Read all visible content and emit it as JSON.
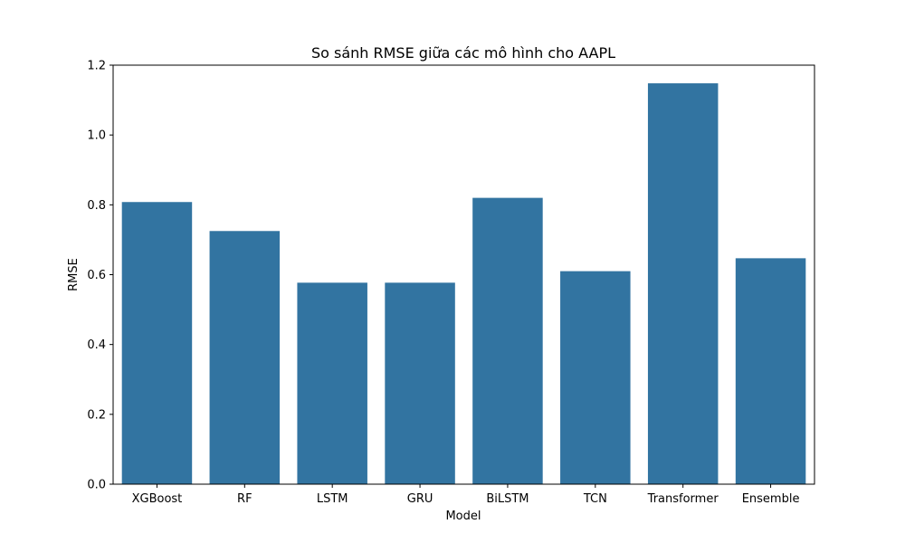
{
  "chart_data": {
    "type": "bar",
    "title": "So sánh RMSE giữa các mô hình cho AAPL",
    "xlabel": "Model",
    "ylabel": "RMSE",
    "categories": [
      "XGBoost",
      "RF",
      "LSTM",
      "GRU",
      "BiLSTM",
      "TCN",
      "Transformer",
      "Ensemble"
    ],
    "values": [
      0.808,
      0.725,
      0.577,
      0.577,
      0.82,
      0.61,
      1.148,
      0.647
    ],
    "ylim": [
      0,
      1.2
    ],
    "yticks": [
      "0.0",
      "0.2",
      "0.4",
      "0.6",
      "0.8",
      "1.0",
      "1.2"
    ],
    "bar_color": "#3274a1",
    "grid": false,
    "legend": "none"
  }
}
